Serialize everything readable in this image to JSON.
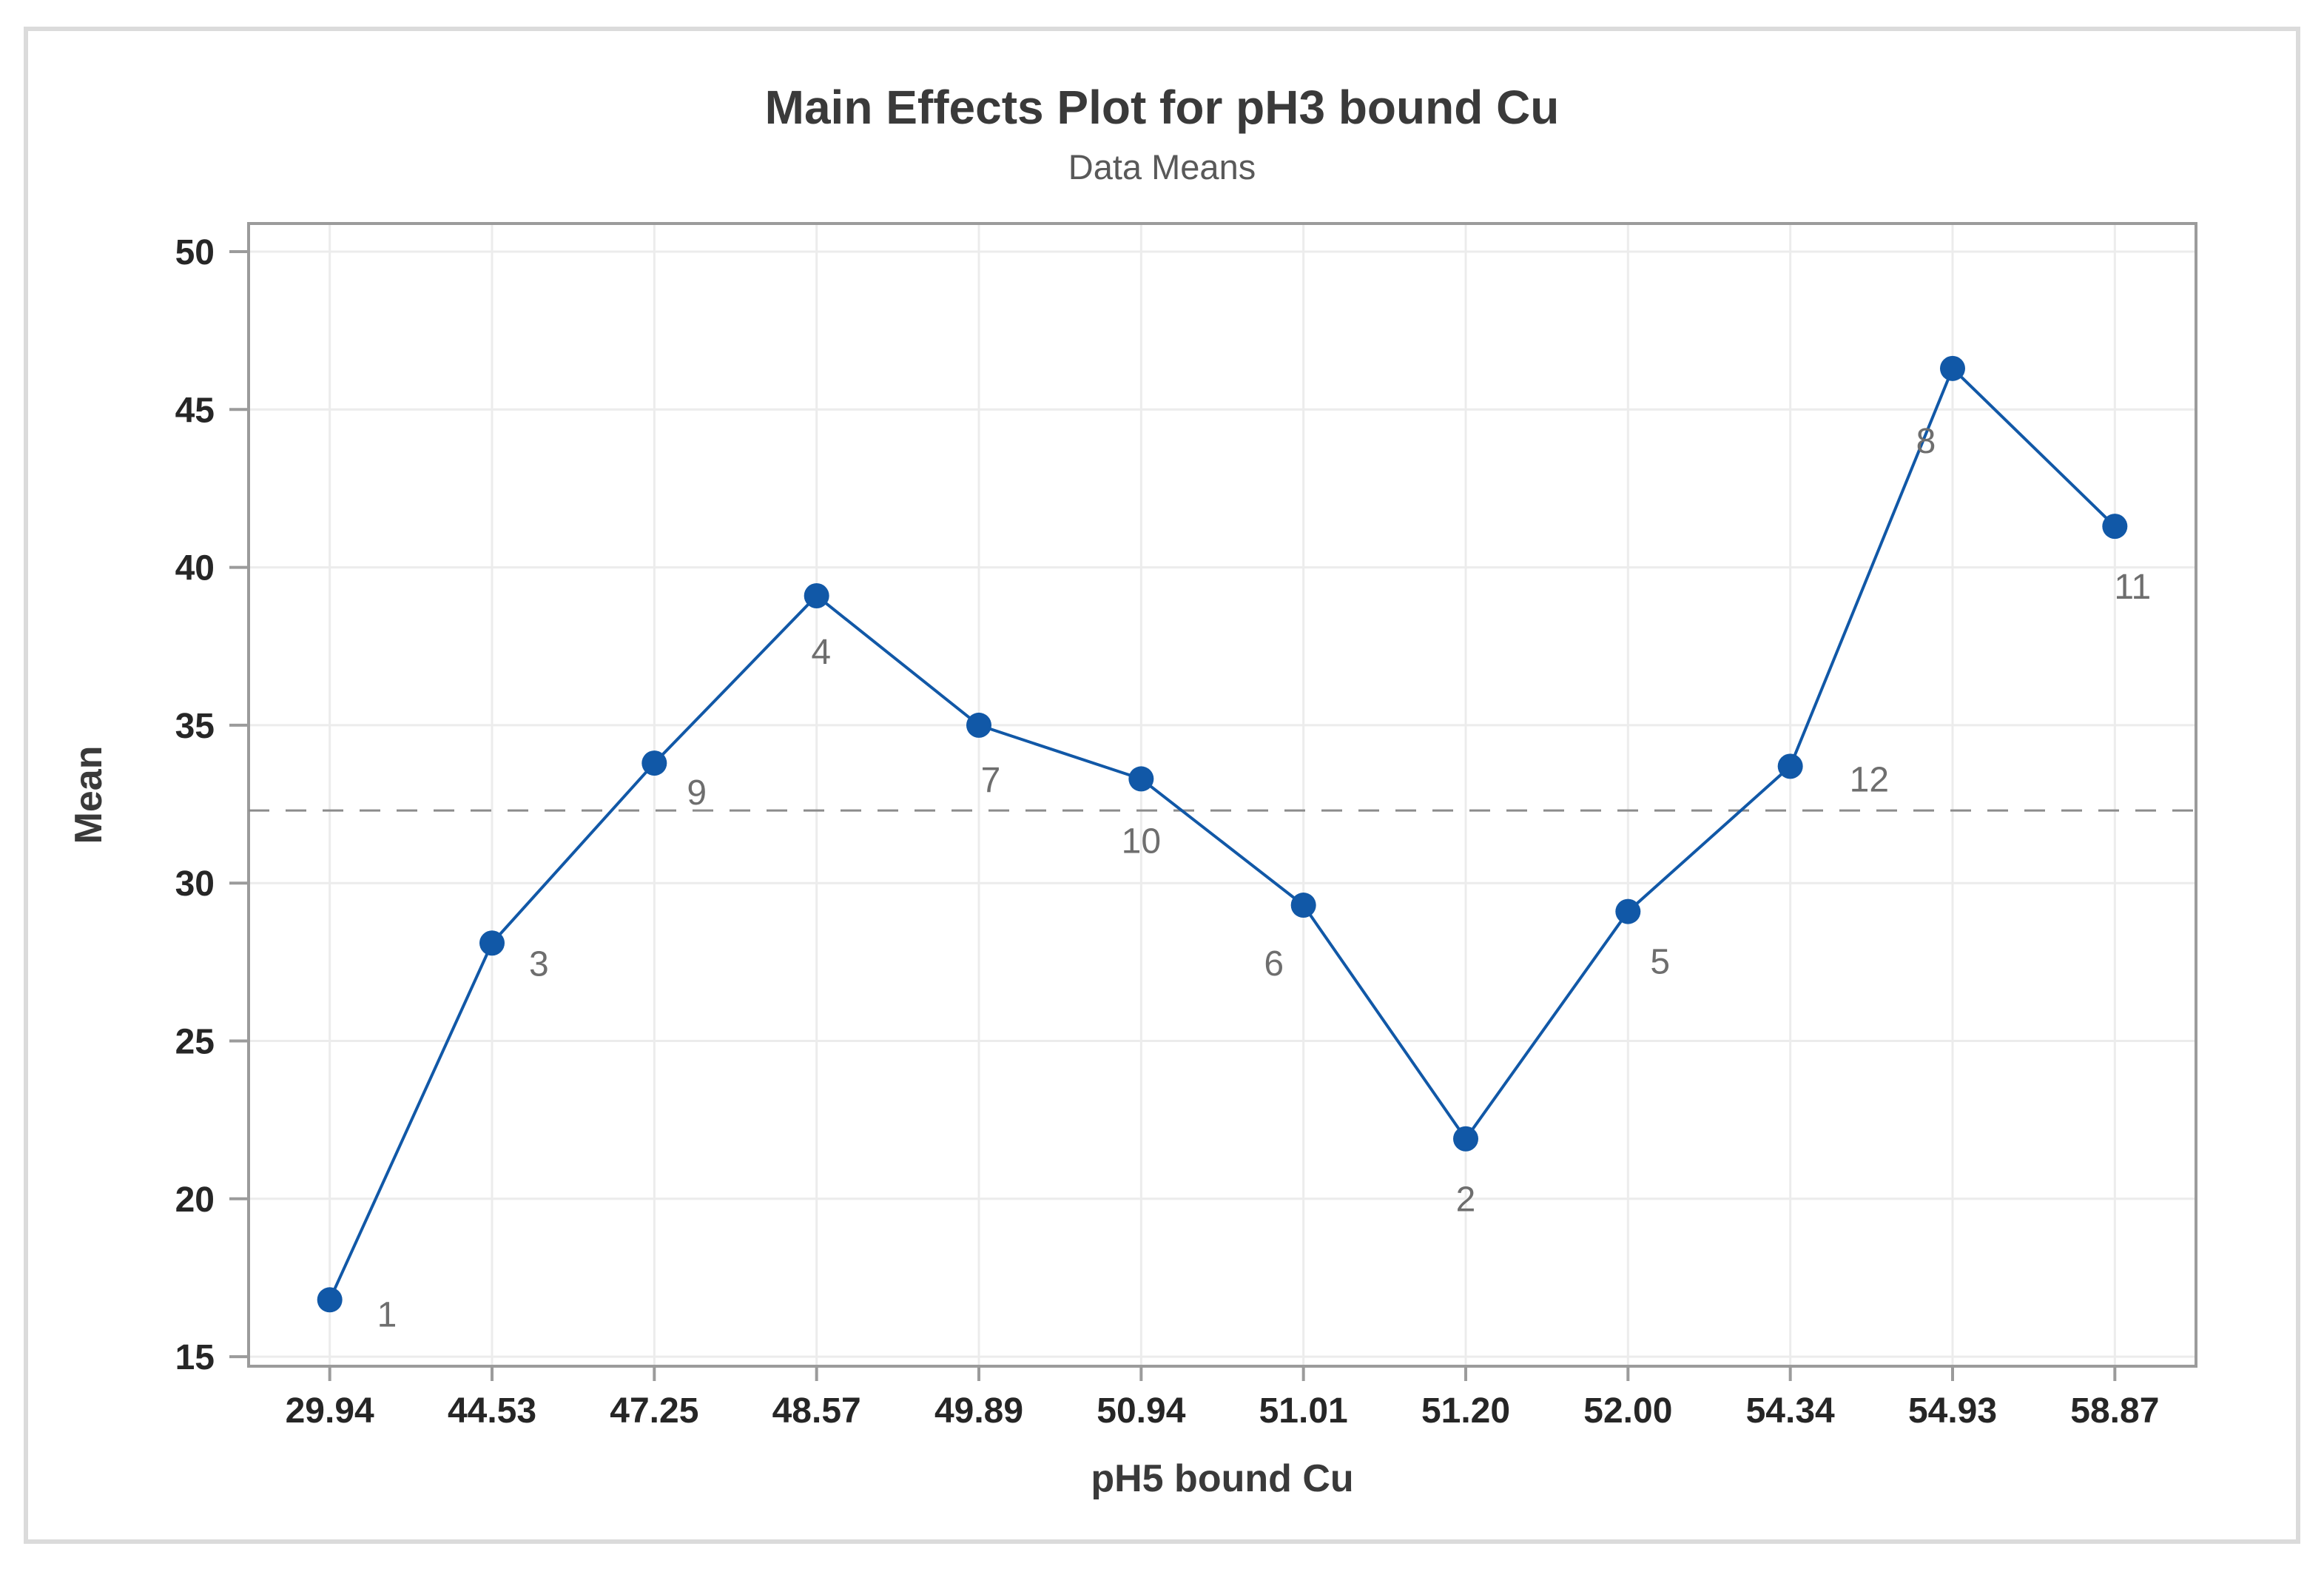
{
  "chart_data": {
    "type": "line",
    "title": "Main Effects Plot for pH3 bound Cu",
    "subtitle": "Data Means",
    "xlabel": "pH5 bound Cu",
    "ylabel": "Mean",
    "categories": [
      "29.94",
      "44.53",
      "47.25",
      "48.57",
      "49.89",
      "50.94",
      "51.01",
      "51.20",
      "52.00",
      "54.34",
      "54.93",
      "58.87"
    ],
    "values": [
      16.8,
      28.1,
      33.8,
      39.1,
      35.0,
      33.3,
      29.3,
      21.9,
      29.1,
      33.7,
      46.3,
      41.3
    ],
    "point_labels": [
      "1",
      "3",
      "9",
      "4",
      "7",
      "10",
      "6",
      "2",
      "5",
      "12",
      "8",
      "11"
    ],
    "mean_line_value": 32.3,
    "y_ticks": [
      15,
      20,
      25,
      30,
      35,
      40,
      45,
      50
    ],
    "ylim": [
      14.7,
      50.9
    ],
    "grid": true,
    "legend": "none",
    "marker_style": "filled-circle",
    "mean_line_style": "dashed",
    "colors": {
      "series": "#1158A7",
      "mean_line": "#8C8C8C",
      "grid": "#ECECEC",
      "axis": "#9B9B9B",
      "tick_label": "#262626",
      "title": "#3A3A3A",
      "subtitle": "#595959",
      "point_label": "#6E6E6E",
      "frame": "#DBDBDB",
      "background": "#FFFFFF"
    }
  }
}
